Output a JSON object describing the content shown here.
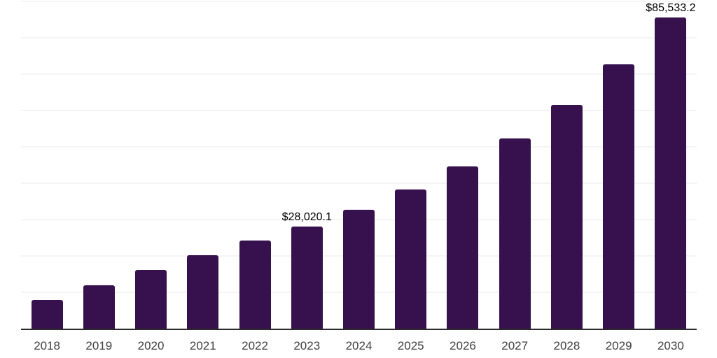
{
  "chart_data": {
    "type": "bar",
    "title": "",
    "xlabel": "",
    "ylabel": "",
    "categories": [
      "2018",
      "2019",
      "2020",
      "2021",
      "2022",
      "2023",
      "2024",
      "2025",
      "2026",
      "2027",
      "2028",
      "2029",
      "2030"
    ],
    "values": [
      7800,
      12000,
      16200,
      20100,
      24200,
      28020.1,
      32700,
      38300,
      44600,
      52400,
      61600,
      72700,
      85533.2
    ],
    "data_labels": [
      {
        "category": "2023",
        "text": "$28,020.1"
      },
      {
        "category": "2030",
        "text": "$85,533.2"
      }
    ],
    "ylim": [
      0,
      90000
    ],
    "gridline_step": 10000,
    "grid": true,
    "legend": "none",
    "colors": {
      "bar": "#36114E",
      "gridline": "#F4F4F4",
      "axis_line": "#2B2B2B",
      "tick_label": "#3F3F3F",
      "data_label": "#000000",
      "background": "#FFFFFF"
    }
  }
}
